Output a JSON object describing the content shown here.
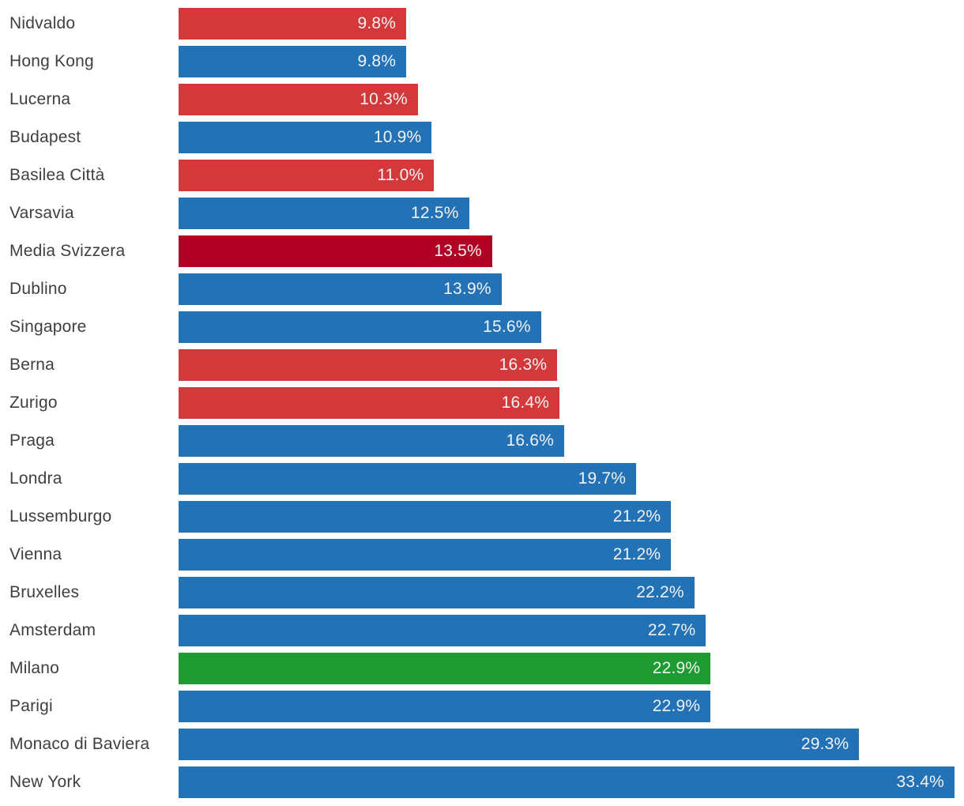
{
  "chart_data": {
    "type": "bar",
    "orientation": "horizontal",
    "title": "",
    "xlabel": "",
    "ylabel": "",
    "xlim": [
      0,
      33.4
    ],
    "grid": false,
    "legend": false,
    "value_suffix": "%",
    "categories": [
      "Nidvaldo",
      "Hong Kong",
      "Lucerna",
      "Budapest",
      "Basilea Città",
      "Varsavia",
      "Media Svizzera",
      "Dublino",
      "Singapore",
      "Berna",
      "Zurigo",
      "Praga",
      "Londra",
      "Lussemburgo",
      "Vienna",
      "Bruxelles",
      "Amsterdam",
      "Milano",
      "Parigi",
      "Monaco di Baviera",
      "New York"
    ],
    "values": [
      9.8,
      9.8,
      10.3,
      10.9,
      11.0,
      12.5,
      13.5,
      13.9,
      15.6,
      16.3,
      16.4,
      16.6,
      19.7,
      21.2,
      21.2,
      22.2,
      22.7,
      22.9,
      22.9,
      29.3,
      33.4
    ],
    "value_labels": [
      "9.8%",
      "9.8%",
      "10.3%",
      "10.9%",
      "11.0%",
      "12.5%",
      "13.5%",
      "13.9%",
      "15.6%",
      "16.3%",
      "16.4%",
      "16.6%",
      "19.7%",
      "21.2%",
      "21.2%",
      "22.2%",
      "22.7%",
      "22.9%",
      "22.9%",
      "29.3%",
      "33.4%"
    ],
    "bar_colors": [
      "red",
      "blue",
      "red",
      "blue",
      "red",
      "blue",
      "darkred",
      "blue",
      "blue",
      "red",
      "red",
      "blue",
      "blue",
      "blue",
      "blue",
      "blue",
      "blue",
      "green",
      "blue",
      "blue",
      "blue"
    ],
    "palette": {
      "red": "#d3383a",
      "blue": "#2272b5",
      "darkred": "#b00023",
      "green": "#1d9a32"
    },
    "label_color": "#3f3f41",
    "value_text_color": "#f2f2f3",
    "background_color": "#ffffff"
  }
}
